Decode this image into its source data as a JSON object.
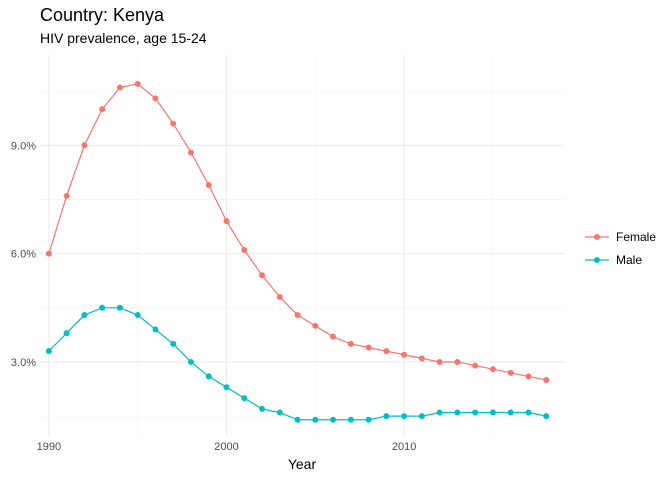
{
  "chart_data": {
    "type": "line",
    "title": "Country: Kenya",
    "subtitle": "HIV prevalence, age 15-24",
    "xlabel": "Year",
    "ylabel": "",
    "x": [
      1990,
      1991,
      1992,
      1993,
      1994,
      1995,
      1996,
      1997,
      1998,
      1999,
      2000,
      2001,
      2002,
      2003,
      2004,
      2005,
      2006,
      2007,
      2008,
      2009,
      2010,
      2011,
      2012,
      2013,
      2014,
      2015,
      2016,
      2017,
      2018
    ],
    "series": [
      {
        "name": "Female",
        "color": "#F8766D",
        "values": [
          6.0,
          7.6,
          9.0,
          10.0,
          10.6,
          10.7,
          10.3,
          9.6,
          8.8,
          7.9,
          6.9,
          6.1,
          5.4,
          4.8,
          4.3,
          4.0,
          3.7,
          3.5,
          3.4,
          3.3,
          3.2,
          3.1,
          3.0,
          3.0,
          2.9,
          2.8,
          2.7,
          2.6,
          2.5
        ]
      },
      {
        "name": "Male",
        "color": "#00BFC4",
        "values": [
          3.3,
          3.8,
          4.3,
          4.5,
          4.5,
          4.3,
          3.9,
          3.5,
          3.0,
          2.6,
          2.3,
          2.0,
          1.7,
          1.6,
          1.4,
          1.4,
          1.4,
          1.4,
          1.4,
          1.5,
          1.5,
          1.5,
          1.6,
          1.6,
          1.6,
          1.6,
          1.6,
          1.6,
          1.5
        ]
      }
    ],
    "xlim": [
      1989.5,
      2019
    ],
    "ylim": [
      0.95,
      11.5
    ],
    "x_ticks": [
      "1990",
      "2000",
      "2010"
    ],
    "y_ticks": [
      "3.0%",
      "6.0%",
      "9.0%"
    ],
    "grid": true,
    "legend_position": "right"
  }
}
